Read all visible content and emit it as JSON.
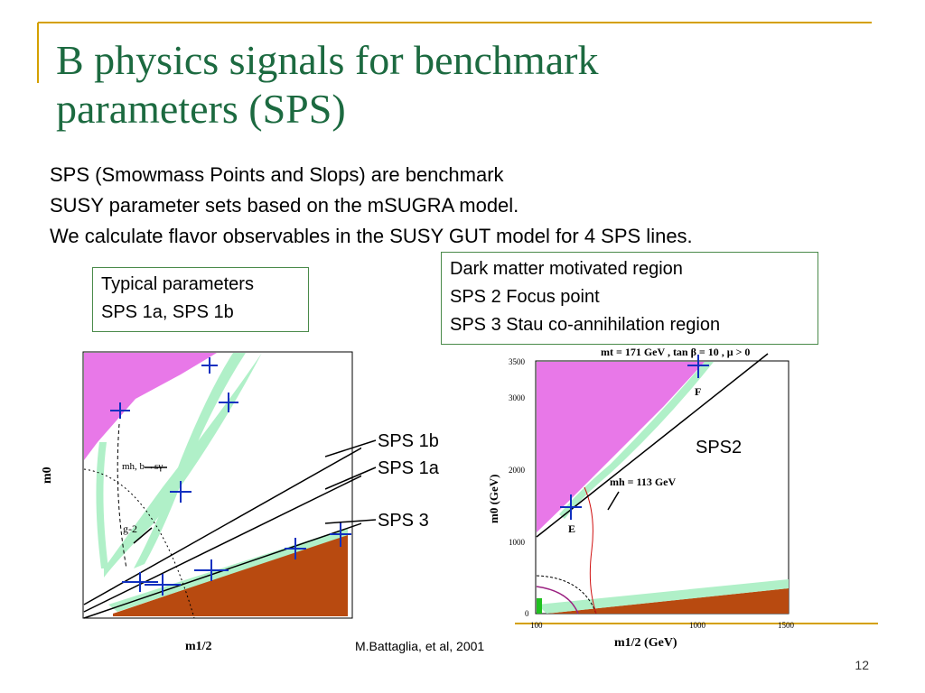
{
  "slide": {
    "title_line1": "B physics signals for benchmark",
    "title_line2": "parameters  (SPS)",
    "intro_lines": [
      "SPS (Smowmass Points and Slops) are benchmark",
      "SUSY parameter sets based on the mSUGRA model.",
      "We calculate flavor observables in the SUSY GUT model for 4 SPS lines."
    ],
    "box_typical": [
      "Typical parameters",
      "SPS 1a, SPS 1b"
    ],
    "box_dark": [
      "Dark matter motivated region",
      "SPS 2 Focus point",
      "SPS 3 Stau co-annihilation region"
    ],
    "label_sps1b": "SPS 1b",
    "label_sps1a": "SPS 1a",
    "label_sps3": "SPS 3",
    "label_sps2": "SPS2",
    "citation": "M.Battaglia, et al, 2001",
    "page_number": "12"
  },
  "left_plot": {
    "ylabel": "m0",
    "xlabel": "m1/2",
    "annot_mh": "mh, b→sγ",
    "annot_g2": "g-2"
  },
  "right_plot": {
    "top_label": "mt = 171 GeV , tan β = 10 ,  μ > 0",
    "ylabel": "m0 (GeV)",
    "xlabel": "m1/2 (GeV)",
    "y_ticks": [
      "3500",
      "3000",
      "2000",
      "1000",
      "0"
    ],
    "x_ticks": [
      "100",
      "1000",
      "1500"
    ],
    "annot_mh": "mh = 113 GeV",
    "point_F": "F",
    "point_E": "E"
  },
  "colors": {
    "title_green": "#1c6a40",
    "accent_gold": "#d4a000",
    "region_magenta": "#e878e8",
    "region_brown": "#b84a10",
    "band_green": "#b0f0c8",
    "marker_blue": "#1030c0",
    "box_border": "#4a8a4a"
  }
}
